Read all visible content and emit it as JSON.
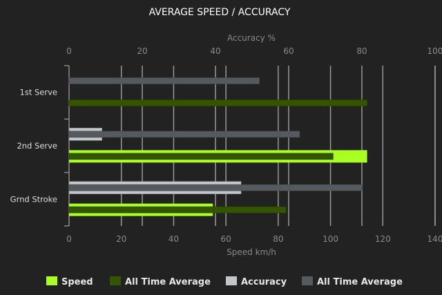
{
  "chart_data": {
    "type": "bar",
    "orientation": "horizontal",
    "title": "AVERAGE SPEED / ACCURACY",
    "categories": [
      "1st Serve",
      "2nd Serve",
      "Grnd Stroke"
    ],
    "x_top": {
      "label": "Accuracy %",
      "range": [
        0,
        100
      ],
      "ticks": [
        0,
        20,
        40,
        60,
        80,
        100
      ]
    },
    "x_bottom": {
      "label": "Speed km/h",
      "range": [
        0,
        140
      ],
      "ticks": [
        0,
        20,
        40,
        60,
        80,
        100,
        120,
        140
      ]
    },
    "grid": true,
    "legend_position": "bottom",
    "series": [
      {
        "name": "Speed",
        "axis": "speed",
        "color": "#aaff22",
        "values": [
          null,
          114,
          55
        ]
      },
      {
        "name": "All Time Average",
        "axis": "speed",
        "color": "#335500",
        "values": [
          114,
          101,
          83
        ]
      },
      {
        "name": "Accuracy",
        "axis": "accuracy",
        "color": "#c3c6c9",
        "values": [
          null,
          9,
          47
        ]
      },
      {
        "name": "All Time Average",
        "axis": "accuracy",
        "color": "#555a61",
        "values": [
          52,
          63,
          80
        ]
      }
    ]
  }
}
